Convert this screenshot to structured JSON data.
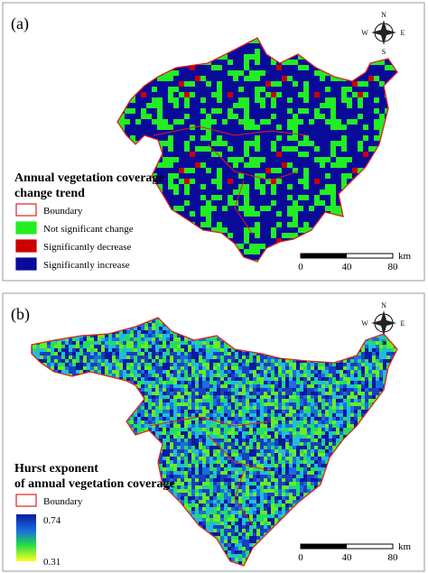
{
  "panels": [
    {
      "label": "(a)",
      "legend": {
        "title_lines": [
          "Annual vegetation coverage",
          "change trend"
        ],
        "items": [
          {
            "label": "Boundary",
            "color": "#ffffff"
          },
          {
            "label": "Not significant change",
            "color": "#22ee22"
          },
          {
            "label": "Significantly decrease",
            "color": "#cc0000"
          },
          {
            "label": "Significantly increase",
            "color": "#0a0a9a"
          }
        ]
      },
      "compass": {
        "n": "N",
        "s": "S",
        "w": "W",
        "e": "E"
      },
      "scale_bar": {
        "ticks": [
          0,
          40,
          80
        ],
        "unit": "km"
      }
    },
    {
      "label": "(b)",
      "legend": {
        "title_lines": [
          "Hurst exponent",
          "of annual vegetation coverage"
        ],
        "items": [
          {
            "label": "Boundary",
            "color": "#ffffff"
          }
        ],
        "colorbar": {
          "max": 0.74,
          "min": 0.31
        }
      },
      "compass": {
        "n": "N",
        "s": "S",
        "w": "W",
        "e": "E"
      },
      "scale_bar": {
        "ticks": [
          0,
          40,
          80
        ],
        "unit": "km"
      }
    }
  ]
}
